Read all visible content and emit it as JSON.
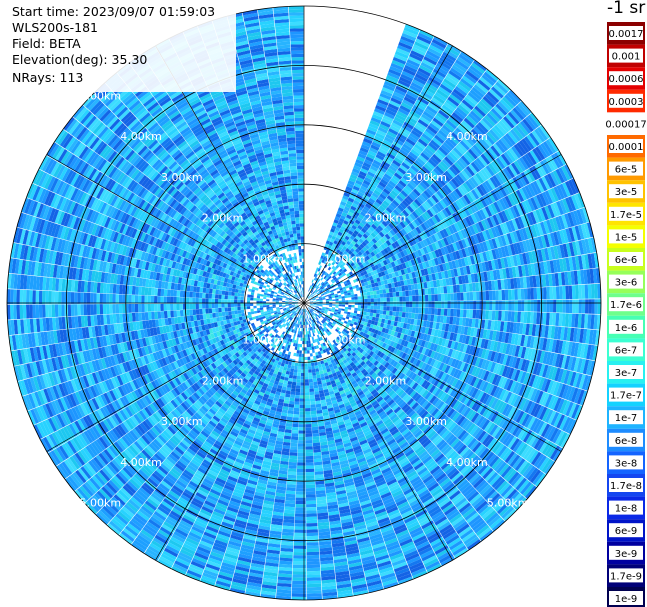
{
  "info": {
    "start_time": "Start time: 2023/09/07 01:59:03",
    "instrument": "WLS200s-181",
    "field": "Field: BETA",
    "elevation": "Elevation(deg): 35.30",
    "nrays": "NRays: 113"
  },
  "chart_data": {
    "type": "heatmap",
    "subtype": "polar-ppi",
    "range_rings_km": [
      1,
      2,
      3,
      4,
      5
    ],
    "ring_labels": [
      "1.00km",
      "2.00km",
      "3.00km",
      "4.00km",
      "5.00km"
    ],
    "max_range_km": 5,
    "spoke_interval_deg": 30,
    "gap_sector_deg": [
      340,
      360
    ],
    "colorbar": {
      "title": "-1 sr",
      "scale": "log",
      "labels": [
        "0.0017",
        "0.001",
        "0.0006",
        "0.0003",
        "0.00017",
        "0.0001",
        "6e-5",
        "3e-5",
        "1.7e-5",
        "1e-5",
        "6e-6",
        "3e-6",
        "1.7e-6",
        "1e-6",
        "6e-7",
        "3e-7",
        "1.7e-7",
        "1e-7",
        "6e-8",
        "3e-8",
        "1.7e-8",
        "1e-8",
        "6e-9",
        "3e-9",
        "1.7e-9",
        "1e-9"
      ],
      "colors": [
        "#8b0000",
        "#c00000",
        "#e40000",
        "#ff2a00",
        "#ffffff",
        "#ff6a00",
        "#ff9a00",
        "#ffc200",
        "#ffe400",
        "#f4ff00",
        "#c8ff1e",
        "#96ff5a",
        "#6eff8c",
        "#46ffb4",
        "#3cffd2",
        "#28f0f0",
        "#14d2ff",
        "#1eb4ff",
        "#1e8cff",
        "#1464ff",
        "#1446f0",
        "#0a28e6",
        "#0014c8",
        "#0000a0",
        "#000078",
        "#000050"
      ]
    }
  }
}
